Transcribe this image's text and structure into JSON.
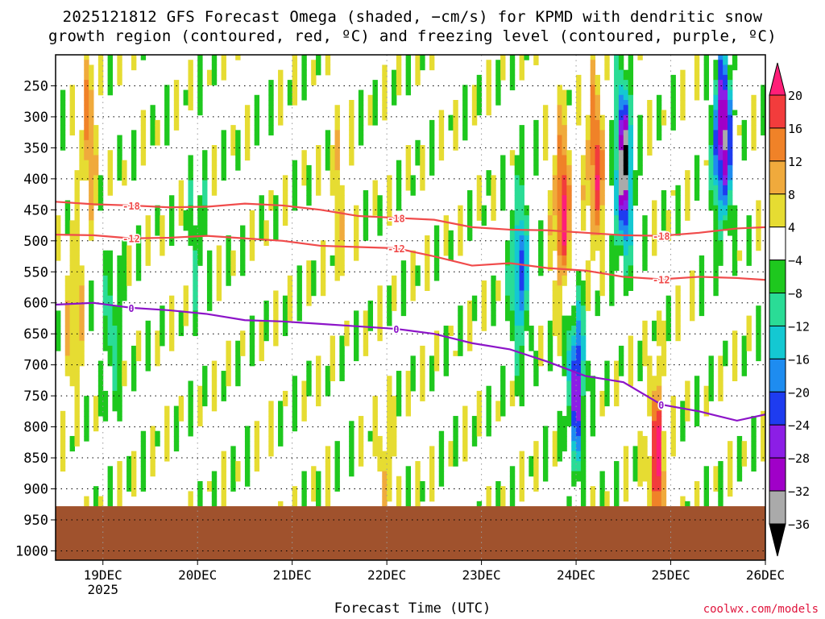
{
  "chart_data": {
    "type": "heatmap",
    "title_line1": "2025121812 GFS Forecast Omega (shaded, −cm/s) for KPMD with dendritic snow",
    "title_line2": "growth region (contoured, red, ºC) and freezing level (contoured, purple, ºC)",
    "xlabel": "Forecast Time (UTC)",
    "credit": "coolwx.com/models",
    "year_label": "2025",
    "x_ticks": [
      {
        "label": "19DEC",
        "day": 19
      },
      {
        "label": "20DEC",
        "day": 20
      },
      {
        "label": "21DEC",
        "day": 21
      },
      {
        "label": "22DEC",
        "day": 22
      },
      {
        "label": "23DEC",
        "day": 23
      },
      {
        "label": "24DEC",
        "day": 24
      },
      {
        "label": "25DEC",
        "day": 25
      },
      {
        "label": "26DEC",
        "day": 26
      }
    ],
    "xlim_day": [
      18.5,
      26
    ],
    "y_ticks": [
      "250",
      "300",
      "350",
      "400",
      "450",
      "500",
      "550",
      "600",
      "650",
      "700",
      "750",
      "800",
      "850",
      "900",
      "950",
      "1000"
    ],
    "ylim_hPa": [
      200,
      1015
    ],
    "surface_pressure_hPa": 928,
    "colorbar": {
      "labels": [
        "20",
        "16",
        "12",
        "8",
        "4",
        "−4",
        "−8",
        "−12",
        "−16",
        "−20",
        "−24",
        "−28",
        "−32",
        "−36"
      ],
      "colors": [
        "#ff1e78",
        "#f23c3c",
        "#f08228",
        "#f0aa3c",
        "#e6dc32",
        "#ffffff",
        "#1ec81e",
        "#2adc96",
        "#14c8d2",
        "#1e8cf0",
        "#1e3cf0",
        "#8c1ee6",
        "#a000c8",
        "#aaaaaa",
        "#000000"
      ]
    },
    "contours": [
      {
        "name": "-18C",
        "color": "#f04b4b",
        "label": "-18",
        "x_day": [
          18.5,
          18.9,
          19.3,
          19.7,
          20.1,
          20.5,
          20.9,
          21.3,
          21.7,
          22.1,
          22.5,
          22.9,
          23.3,
          23.7,
          24.1,
          24.5,
          24.9,
          25.3,
          25.7,
          26.0
        ],
        "p_hPa": [
          437,
          441,
          443,
          446,
          445,
          440,
          443,
          450,
          460,
          463,
          466,
          478,
          482,
          483,
          487,
          491,
          492,
          487,
          480,
          478
        ]
      },
      {
        "name": "-12C",
        "color": "#f04b4b",
        "label": "-12",
        "x_day": [
          18.5,
          18.9,
          19.3,
          19.7,
          20.1,
          20.5,
          20.9,
          21.3,
          21.7,
          22.1,
          22.5,
          22.9,
          23.3,
          23.7,
          24.1,
          24.5,
          24.9,
          25.3,
          25.7,
          26.0
        ],
        "p_hPa": [
          490,
          491,
          496,
          495,
          492,
          496,
          500,
          508,
          510,
          512,
          525,
          540,
          536,
          544,
          548,
          558,
          562,
          558,
          560,
          563
        ]
      },
      {
        "name": "freezing level",
        "color": "#8c14c8",
        "label": "0",
        "x_day": [
          18.5,
          18.9,
          19.3,
          19.7,
          20.1,
          20.5,
          20.9,
          21.3,
          21.7,
          22.1,
          22.5,
          22.9,
          23.3,
          23.7,
          24.1,
          24.5,
          24.9,
          25.3,
          25.7,
          26.0
        ],
        "p_hPa": [
          603,
          600,
          608,
          612,
          618,
          628,
          630,
          634,
          638,
          642,
          650,
          665,
          675,
          695,
          718,
          728,
          764,
          775,
          790,
          780
        ]
      }
    ],
    "omega_features": [
      {
        "x_day": 18.85,
        "p_hPa": 330,
        "value": 12
      },
      {
        "x_day": 18.7,
        "p_hPa": 630,
        "value": 10
      },
      {
        "x_day": 19.1,
        "p_hPa": 650,
        "value": -10
      },
      {
        "x_day": 20.0,
        "p_hPa": 480,
        "value": -8
      },
      {
        "x_day": 21.5,
        "p_hPa": 420,
        "value": 6
      },
      {
        "x_day": 22.0,
        "p_hPa": 890,
        "value": 8
      },
      {
        "x_day": 23.4,
        "p_hPa": 550,
        "value": -20
      },
      {
        "x_day": 23.85,
        "p_hPa": 450,
        "value": 20
      },
      {
        "x_day": 24.2,
        "p_hPa": 380,
        "value": 18
      },
      {
        "x_day": 24.5,
        "p_hPa": 380,
        "value": -36
      },
      {
        "x_day": 24.85,
        "p_hPa": 855,
        "value": 20
      },
      {
        "x_day": 25.55,
        "p_hPa": 330,
        "value": -36
      },
      {
        "x_day": 24.0,
        "p_hPa": 730,
        "value": -26
      }
    ]
  }
}
